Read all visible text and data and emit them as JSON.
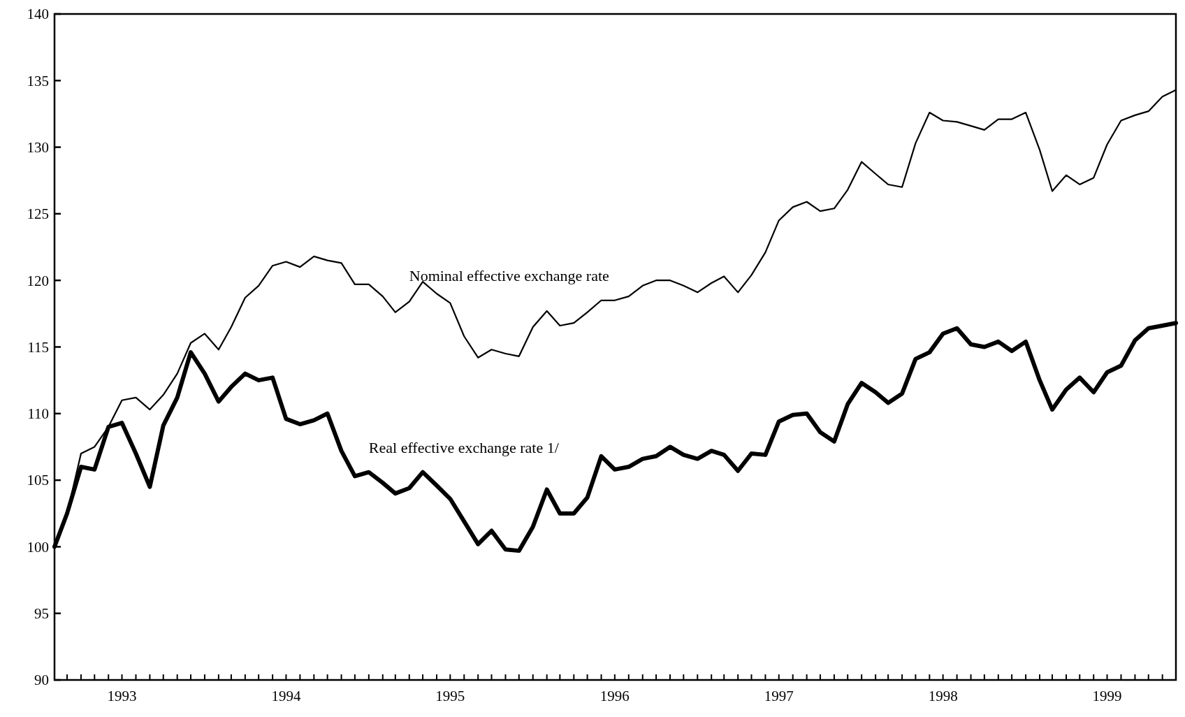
{
  "chart_data": {
    "type": "line",
    "x": [
      "1993-02",
      "1993-03",
      "1993-04",
      "1993-05",
      "1993-06",
      "1993-07",
      "1993-08",
      "1993-09",
      "1993-10",
      "1993-11",
      "1993-12",
      "1994-01",
      "1994-02",
      "1994-03",
      "1994-04",
      "1994-05",
      "1994-06",
      "1994-07",
      "1994-08",
      "1994-09",
      "1994-10",
      "1994-11",
      "1994-12",
      "1995-01",
      "1995-02",
      "1995-03",
      "1995-04",
      "1995-05",
      "1995-06",
      "1995-07",
      "1995-08",
      "1995-09",
      "1995-10",
      "1995-11",
      "1995-12",
      "1996-01",
      "1996-02",
      "1996-03",
      "1996-04",
      "1996-05",
      "1996-06",
      "1996-07",
      "1996-08",
      "1996-09",
      "1996-10",
      "1996-11",
      "1996-12",
      "1997-01",
      "1997-02",
      "1997-03",
      "1997-04",
      "1997-05",
      "1997-06",
      "1997-07",
      "1997-08",
      "1997-09",
      "1997-10",
      "1997-11",
      "1997-12",
      "1998-01",
      "1998-02",
      "1998-03",
      "1998-04",
      "1998-05",
      "1998-06",
      "1998-07",
      "1998-08",
      "1998-09",
      "1998-10",
      "1998-11",
      "1998-12",
      "1999-01",
      "1999-02",
      "1999-03",
      "1999-04",
      "1999-05",
      "1999-06",
      "1999-07",
      "1999-08",
      "1999-09",
      "1999-10",
      "1999-11",
      "1999-12"
    ],
    "series": [
      {
        "name": "Nominal effective exchange rate",
        "color": "#000000",
        "values": [
          100,
          102.5,
          107,
          107.5,
          109,
          111,
          111.2,
          110.3,
          111.4,
          113,
          115.3,
          116,
          114.8,
          116.5,
          118.7,
          119.6,
          121.1,
          121.4,
          121,
          121.8,
          121.5,
          121.3,
          119.7,
          119.7,
          118.8,
          117.6,
          118.4,
          119.9,
          119,
          118.3,
          115.8,
          114.2,
          114.8,
          114.5,
          114.3,
          116.5,
          117.7,
          116.6,
          116.8,
          117.6,
          118.5,
          118.5,
          118.8,
          119.6,
          120,
          120,
          119.6,
          119.1,
          119.8,
          120.3,
          119.1,
          120.4,
          122.1,
          124.5,
          125.5,
          125.9,
          125.2,
          125.4,
          126.8,
          128.9,
          128,
          127.2,
          127,
          130.3,
          132.6,
          132,
          131.9,
          131.6,
          131.3,
          132.1,
          132.1,
          132.6,
          129.8,
          126.7,
          127.9,
          127.2,
          127.7,
          130.2,
          132,
          132.4,
          132.7,
          133.8,
          134.3
        ]
      },
      {
        "name": "Real effective exchange rate 1/",
        "color": "#000000",
        "values": [
          100,
          102.5,
          106,
          105.8,
          109,
          109.3,
          107,
          104.5,
          109.1,
          111.2,
          114.6,
          113,
          110.9,
          112,
          113,
          112.5,
          112.7,
          109.6,
          109.2,
          109.5,
          110,
          107.2,
          105.3,
          105.6,
          104.8,
          104,
          104.4,
          105.6,
          104.6,
          103.6,
          101.9,
          100.2,
          101.2,
          99.8,
          99.7,
          101.5,
          104.3,
          102.5,
          102.5,
          103.7,
          106.8,
          105.8,
          106,
          106.6,
          106.8,
          107.5,
          106.9,
          106.6,
          107.2,
          106.9,
          105.7,
          107,
          106.9,
          109.4,
          109.9,
          110,
          108.6,
          107.9,
          110.7,
          112.3,
          111.6,
          110.8,
          111.5,
          114.1,
          114.6,
          116,
          116.4,
          115.2,
          115,
          115.4,
          114.7,
          115.4,
          112.5,
          110.3,
          111.8,
          112.7,
          111.6,
          113.1,
          113.6,
          115.5,
          116.4,
          116.6,
          116.8
        ]
      }
    ],
    "xlim": [
      "1993-02",
      "1999-12"
    ],
    "xticks": [
      {
        "value": "1993-02",
        "label": null
      },
      {
        "value": "1993-03",
        "label": null
      },
      {
        "value": "1993-04",
        "label": null
      },
      {
        "value": "1993-05",
        "label": null
      },
      {
        "value": "1993-06",
        "label": null
      },
      {
        "value": "1993-07",
        "label": "1993"
      },
      {
        "value": "1993-08",
        "label": null
      },
      {
        "value": "1993-09",
        "label": null
      },
      {
        "value": "1993-10",
        "label": null
      },
      {
        "value": "1993-11",
        "label": null
      },
      {
        "value": "1993-12",
        "label": null
      },
      {
        "value": "1994-01",
        "label": null
      },
      {
        "value": "1994-02",
        "label": null
      },
      {
        "value": "1994-03",
        "label": null
      },
      {
        "value": "1994-04",
        "label": null
      },
      {
        "value": "1994-05",
        "label": null
      },
      {
        "value": "1994-06",
        "label": null
      },
      {
        "value": "1994-07",
        "label": "1994"
      },
      {
        "value": "1994-08",
        "label": null
      },
      {
        "value": "1994-09",
        "label": null
      },
      {
        "value": "1994-10",
        "label": null
      },
      {
        "value": "1994-11",
        "label": null
      },
      {
        "value": "1994-12",
        "label": null
      },
      {
        "value": "1995-01",
        "label": null
      },
      {
        "value": "1995-02",
        "label": null
      },
      {
        "value": "1995-03",
        "label": null
      },
      {
        "value": "1995-04",
        "label": null
      },
      {
        "value": "1995-05",
        "label": null
      },
      {
        "value": "1995-06",
        "label": null
      },
      {
        "value": "1995-07",
        "label": "1995"
      },
      {
        "value": "1995-08",
        "label": null
      },
      {
        "value": "1995-09",
        "label": null
      },
      {
        "value": "1995-10",
        "label": null
      },
      {
        "value": "1995-11",
        "label": null
      },
      {
        "value": "1995-12",
        "label": null
      },
      {
        "value": "1996-01",
        "label": null
      },
      {
        "value": "1996-02",
        "label": null
      },
      {
        "value": "1996-03",
        "label": null
      },
      {
        "value": "1996-04",
        "label": null
      },
      {
        "value": "1996-05",
        "label": null
      },
      {
        "value": "1996-06",
        "label": null
      },
      {
        "value": "1996-07",
        "label": "1996"
      },
      {
        "value": "1996-08",
        "label": null
      },
      {
        "value": "1996-09",
        "label": null
      },
      {
        "value": "1996-10",
        "label": null
      },
      {
        "value": "1996-11",
        "label": null
      },
      {
        "value": "1996-12",
        "label": null
      },
      {
        "value": "1997-01",
        "label": null
      },
      {
        "value": "1997-02",
        "label": null
      },
      {
        "value": "1997-03",
        "label": null
      },
      {
        "value": "1997-04",
        "label": null
      },
      {
        "value": "1997-05",
        "label": null
      },
      {
        "value": "1997-06",
        "label": null
      },
      {
        "value": "1997-07",
        "label": "1997"
      },
      {
        "value": "1997-08",
        "label": null
      },
      {
        "value": "1997-09",
        "label": null
      },
      {
        "value": "1997-10",
        "label": null
      },
      {
        "value": "1997-11",
        "label": null
      },
      {
        "value": "1997-12",
        "label": null
      },
      {
        "value": "1998-01",
        "label": null
      },
      {
        "value": "1998-02",
        "label": null
      },
      {
        "value": "1998-03",
        "label": null
      },
      {
        "value": "1998-04",
        "label": null
      },
      {
        "value": "1998-05",
        "label": null
      },
      {
        "value": "1998-06",
        "label": null
      },
      {
        "value": "1998-07",
        "label": "1998"
      },
      {
        "value": "1998-08",
        "label": null
      },
      {
        "value": "1998-09",
        "label": null
      },
      {
        "value": "1998-10",
        "label": null
      },
      {
        "value": "1998-11",
        "label": null
      },
      {
        "value": "1998-12",
        "label": null
      },
      {
        "value": "1999-01",
        "label": null
      },
      {
        "value": "1999-02",
        "label": null
      },
      {
        "value": "1999-03",
        "label": null
      },
      {
        "value": "1999-04",
        "label": null
      },
      {
        "value": "1999-05",
        "label": null
      },
      {
        "value": "1999-06",
        "label": null
      },
      {
        "value": "1999-07",
        "label": "1999"
      },
      {
        "value": "1999-08",
        "label": null
      },
      {
        "value": "1999-09",
        "label": null
      },
      {
        "value": "1999-10",
        "label": null
      },
      {
        "value": "1999-11",
        "label": null
      },
      {
        "value": "1999-12",
        "label": null
      }
    ],
    "ylim": [
      90,
      140
    ],
    "yticks": [
      90,
      95,
      100,
      105,
      110,
      115,
      120,
      125,
      130,
      135,
      140
    ],
    "grid": false,
    "marker": "none",
    "line_style": "solid"
  }
}
